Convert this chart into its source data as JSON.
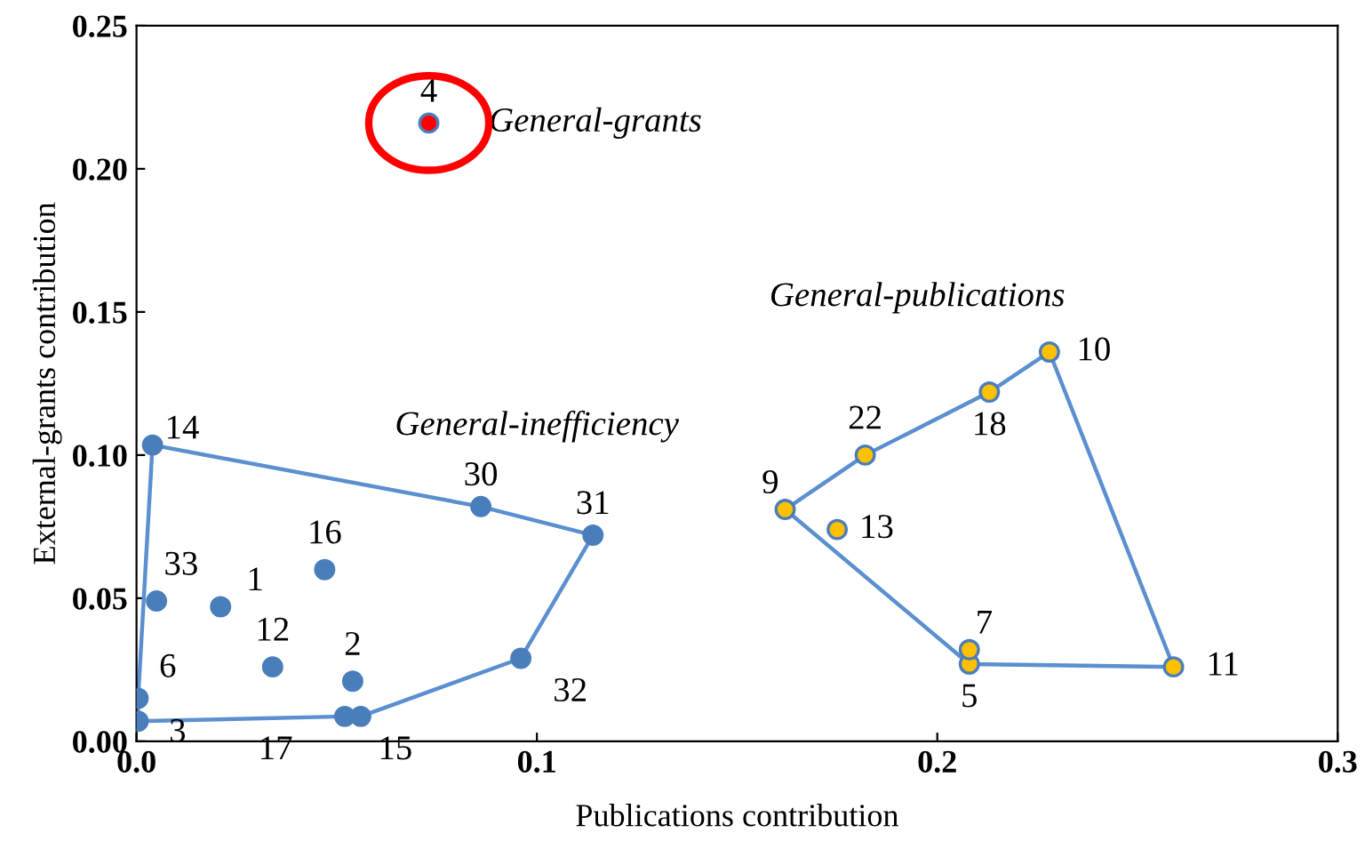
{
  "chart_data": {
    "type": "scatter",
    "xlabel": "Publications contribution",
    "ylabel": "External-grants contribution",
    "xlim": [
      0,
      0.3
    ],
    "xticks": [
      {
        "value": 0,
        "label": "0.0"
      },
      {
        "value": 0.1,
        "label": "0.1"
      },
      {
        "value": 0.2,
        "label": "0.2"
      },
      {
        "value": 0.3,
        "label": "0.3"
      }
    ],
    "ylim": [
      0,
      0.25
    ],
    "yticks": [
      {
        "value": 0,
        "label": "0.00"
      },
      {
        "value": 0.05,
        "label": "0.05"
      },
      {
        "value": 0.1,
        "label": "0.10"
      },
      {
        "value": 0.15,
        "label": "0.15"
      },
      {
        "value": 0.2,
        "label": "0.20"
      },
      {
        "value": 0.25,
        "label": "0.25"
      }
    ],
    "grid": false,
    "legend": false,
    "series": [
      {
        "type": "line",
        "color": "#5b8fd0",
        "x": [
          0.0004,
          0.052,
          0.056,
          0.096,
          0.114
        ],
        "values": [
          0.007,
          0.0087,
          0.0087,
          0.029,
          0.072
        ]
      },
      {
        "type": "line",
        "color": "#5b8fd0",
        "x": [
          0.0004,
          0.0004,
          0.004,
          0.086,
          0.114
        ],
        "values": [
          0.007,
          0.015,
          0.1035,
          0.082,
          0.072
        ]
      },
      {
        "type": "line",
        "color": "#5b8fd0",
        "x": [
          0.162,
          0.182,
          0.213,
          0.228,
          0.259
        ],
        "values": [
          0.081,
          0.1,
          0.122,
          0.136,
          0.026
        ]
      },
      {
        "type": "line",
        "color": "#5b8fd0",
        "x": [
          0.162,
          0.208,
          0.259
        ],
        "values": [
          0.081,
          0.027,
          0.026
        ]
      },
      {
        "marker": "circle",
        "color": "#4a7ebb",
        "x": [
          0.004,
          0.086,
          0.114,
          0.005,
          0.021,
          0.047,
          0.034,
          0.054,
          0.096,
          0.052,
          0.056,
          0.0004,
          0.0004
        ],
        "values": [
          0.1035,
          0.082,
          0.072,
          0.049,
          0.047,
          0.06,
          0.026,
          0.021,
          0.029,
          0.0087,
          0.0087,
          0.007,
          0.015
        ]
      },
      {
        "marker": "circle",
        "color": "#ffc000",
        "x": [
          0.162,
          0.182,
          0.213,
          0.228,
          0.259,
          0.208,
          0.208,
          0.175
        ],
        "values": [
          0.081,
          0.1,
          0.122,
          0.136,
          0.026,
          0.027,
          0.032,
          0.074
        ]
      },
      {
        "marker": "circle",
        "color": "#ff0000",
        "x": [
          0.073
        ],
        "values": [
          0.216
        ]
      }
    ],
    "annotations": [
      {
        "text": "14",
        "x": 0.004,
        "y": 0.1035
      },
      {
        "text": "30",
        "x": 0.086,
        "y": 0.082
      },
      {
        "text": "31",
        "x": 0.114,
        "y": 0.072
      },
      {
        "text": "33",
        "x": 0.005,
        "y": 0.049
      },
      {
        "text": "1",
        "x": 0.021,
        "y": 0.047
      },
      {
        "text": "16",
        "x": 0.047,
        "y": 0.06
      },
      {
        "text": "12",
        "x": 0.034,
        "y": 0.026
      },
      {
        "text": "2",
        "x": 0.054,
        "y": 0.021
      },
      {
        "text": "32",
        "x": 0.096,
        "y": 0.029
      },
      {
        "text": "17",
        "x": 0.052,
        "y": 0.0087
      },
      {
        "text": "15",
        "x": 0.056,
        "y": 0.0087
      },
      {
        "text": "3",
        "x": 0.0004,
        "y": 0.007
      },
      {
        "text": "6",
        "x": 0.0004,
        "y": 0.015
      },
      {
        "text": "9",
        "x": 0.162,
        "y": 0.081
      },
      {
        "text": "22",
        "x": 0.182,
        "y": 0.1
      },
      {
        "text": "18",
        "x": 0.213,
        "y": 0.122
      },
      {
        "text": "10",
        "x": 0.228,
        "y": 0.136
      },
      {
        "text": "11",
        "x": 0.259,
        "y": 0.026
      },
      {
        "text": "5",
        "x": 0.208,
        "y": 0.027
      },
      {
        "text": "7",
        "x": 0.208,
        "y": 0.032
      },
      {
        "text": "13",
        "x": 0.175,
        "y": 0.074
      },
      {
        "text": "4",
        "x": 0.073,
        "y": 0.216
      },
      "General-grants",
      "General-inefficiency",
      "General-publications"
    ]
  }
}
